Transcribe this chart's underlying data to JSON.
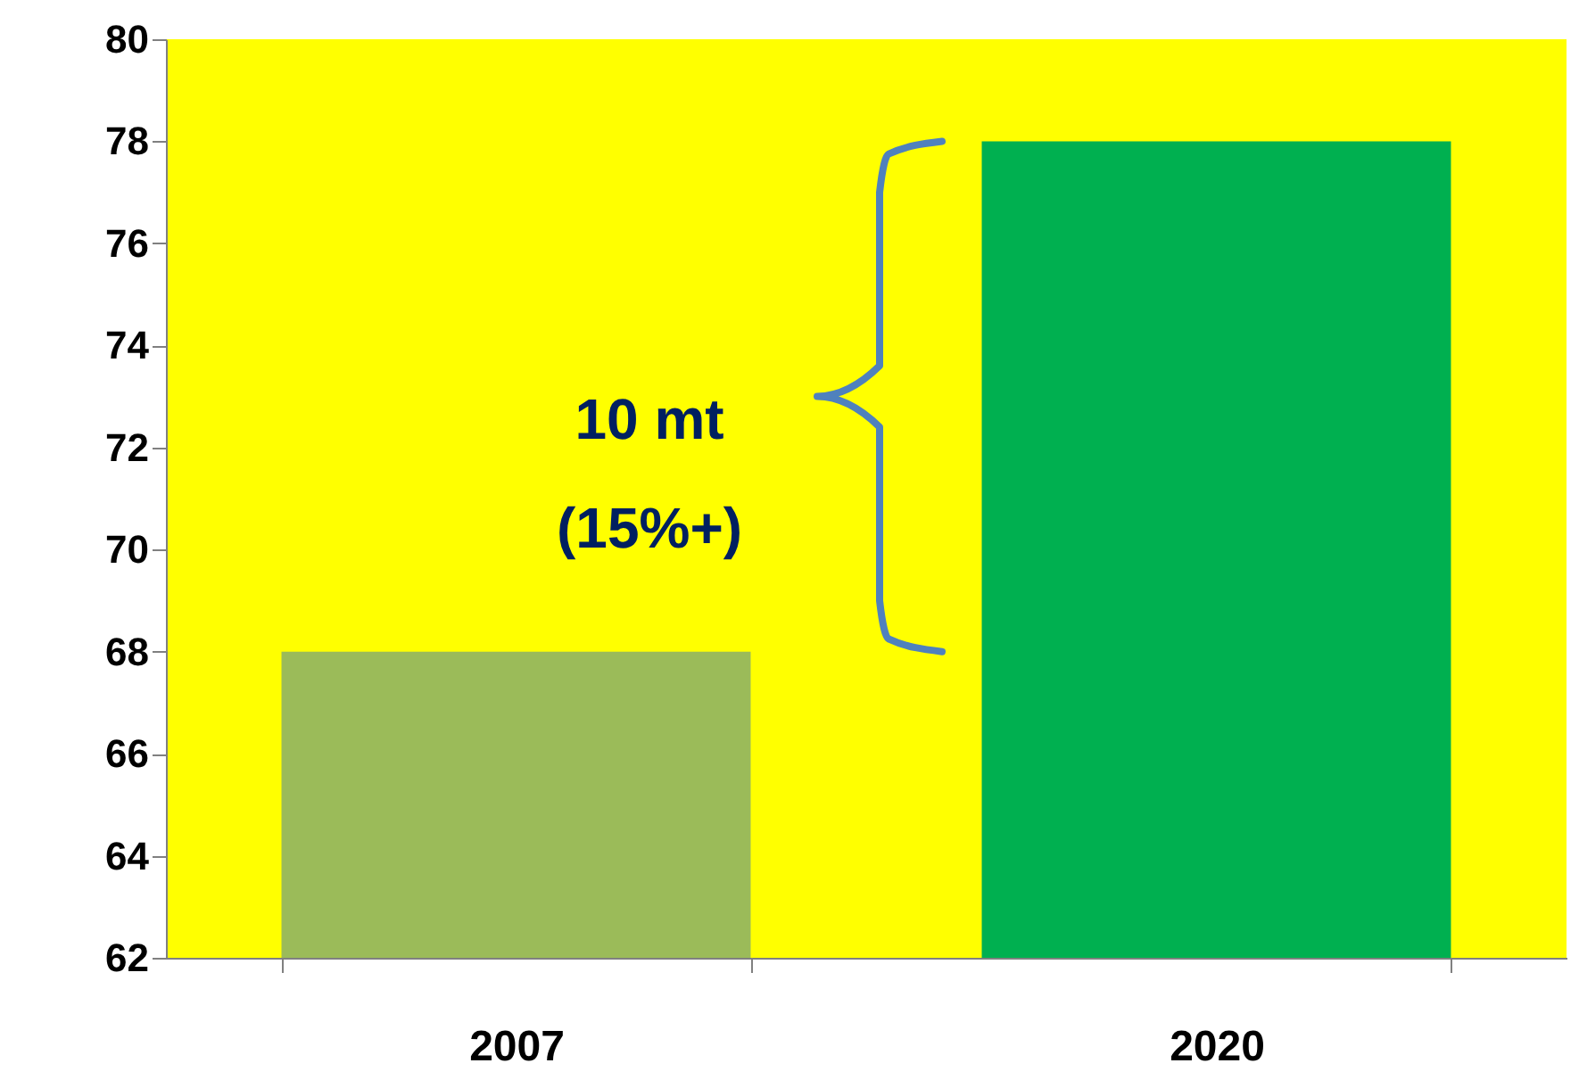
{
  "chart_data": {
    "type": "bar",
    "categories": [
      "2007",
      "2020"
    ],
    "values": [
      68,
      78
    ],
    "colors": [
      "#9bbb59",
      "#00b050"
    ],
    "ylim": [
      62,
      80
    ],
    "yticks": [
      62,
      64,
      66,
      68,
      70,
      72,
      74,
      76,
      78,
      80
    ],
    "grid": false,
    "annotations": [
      "10 mt",
      "(15%+)"
    ]
  }
}
